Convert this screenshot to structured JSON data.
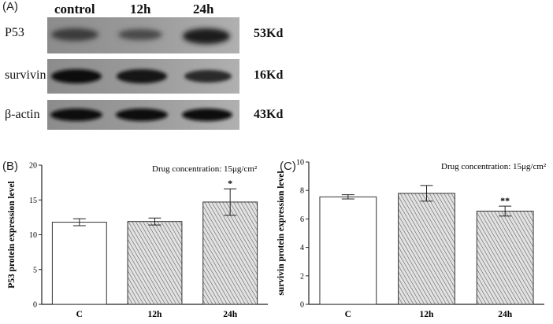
{
  "panels": {
    "a": "(A)",
    "b": "(B)",
    "c": "(C)"
  },
  "blot": {
    "columns": [
      "control",
      "12h",
      "24h"
    ],
    "rows": [
      {
        "label": "P53",
        "size": "53Kd"
      },
      {
        "label": "survivin",
        "size": "16Kd"
      },
      {
        "label": "β-actin",
        "size": "43Kd"
      }
    ]
  },
  "chart_data": [
    {
      "type": "bar",
      "categories": [
        "C",
        "12h",
        "24h"
      ],
      "values": [
        11.8,
        11.9,
        14.7
      ],
      "errors": [
        0.5,
        0.5,
        1.9
      ],
      "significance": [
        "",
        "",
        "*"
      ],
      "title": "",
      "annotation": "Drug concentration: 15μg/cm²",
      "xlabel": "",
      "ylabel": "P53 protein expression level",
      "ylim": [
        0,
        20
      ],
      "yticks": [
        0,
        5,
        10,
        15,
        20
      ],
      "fills": [
        "white",
        "hatched",
        "hatched"
      ]
    },
    {
      "type": "bar",
      "categories": [
        "C",
        "12h",
        "24h"
      ],
      "values": [
        7.55,
        7.8,
        6.55
      ],
      "errors": [
        0.15,
        0.55,
        0.35
      ],
      "significance": [
        "",
        "",
        "**"
      ],
      "title": "",
      "annotation": "Drug concentration: 15μg/cm²",
      "xlabel": "",
      "ylabel": "survivin protein expression level",
      "ylim": [
        0,
        10
      ],
      "yticks": [
        0,
        2,
        4,
        6,
        8,
        10
      ],
      "fills": [
        "white",
        "hatched",
        "hatched"
      ]
    }
  ]
}
